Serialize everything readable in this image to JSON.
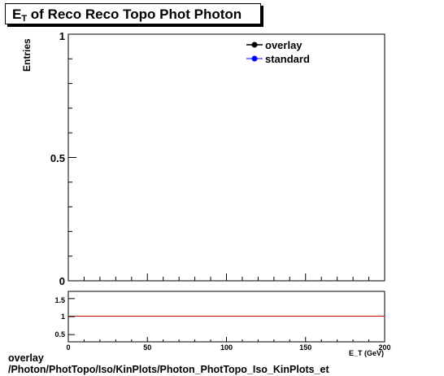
{
  "title": {
    "main": "E",
    "sub": "T",
    "rest": " of Reco Reco Topo Phot Photon"
  },
  "footer": {
    "line1": "overlay",
    "line2": "/Photon/PhotTopo/Iso/KinPlots/Photon_PhotTopo_Iso_KinPlots_et"
  },
  "chart_data": [
    {
      "type": "line",
      "title": "E_T of Reco Reco Topo Phot Photon",
      "ylabel": "Entries",
      "xlabel": "",
      "xlim": [
        0,
        200
      ],
      "ylim": [
        0,
        1
      ],
      "y_tick_labels": [
        "0",
        "0.5",
        "1"
      ],
      "x_major_ticks": [
        0,
        50,
        100,
        150,
        200
      ],
      "legend": {
        "placement": "top-right",
        "entries": [
          {
            "name": "overlay",
            "color": "#000000"
          },
          {
            "name": "standard",
            "color": "#0000ff"
          }
        ]
      },
      "series": [
        {
          "name": "overlay",
          "color": "#000000",
          "values": []
        },
        {
          "name": "standard",
          "color": "#0000ff",
          "values": []
        }
      ]
    },
    {
      "type": "line",
      "title": "",
      "xlabel": "E_T (GeV)",
      "xlim": [
        0,
        200
      ],
      "ylim": [
        0.3,
        1.7
      ],
      "y_tick_labels": [
        "0.5",
        "1",
        "1.5"
      ],
      "x_tick_labels": [
        "0",
        "50",
        "100",
        "150",
        "200"
      ],
      "reference_line": {
        "y": 1,
        "color": "#cc0000"
      }
    }
  ]
}
